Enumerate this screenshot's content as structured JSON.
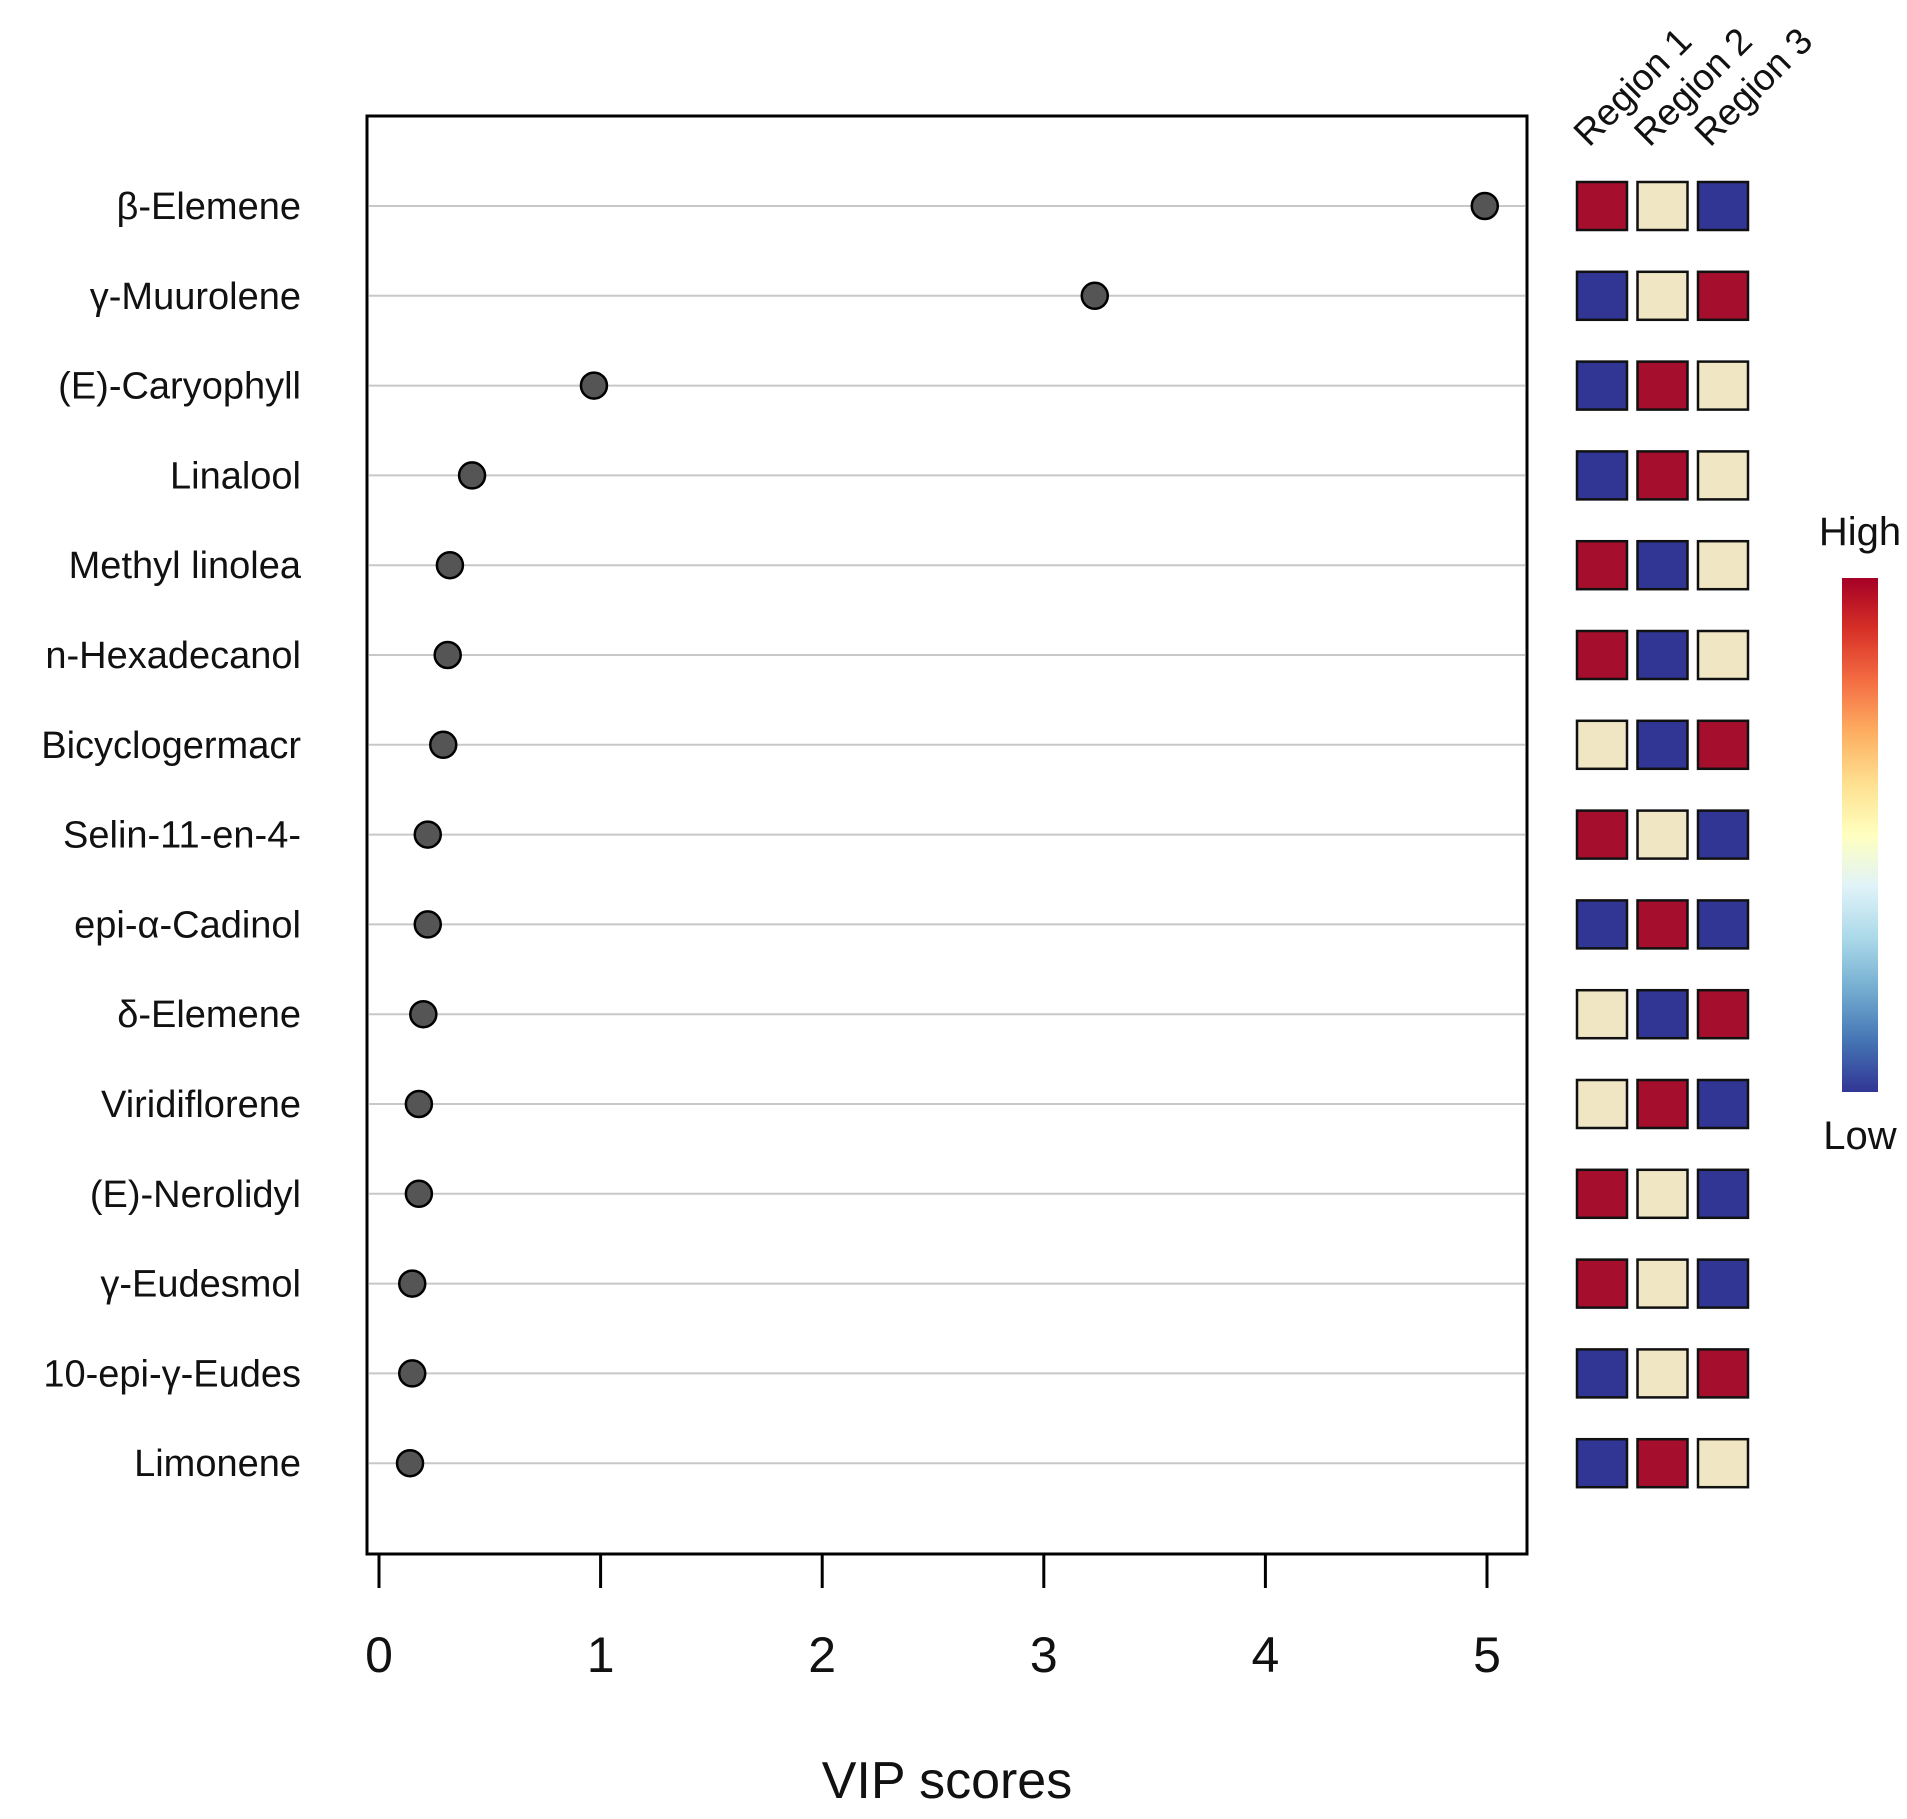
{
  "chart_data": {
    "type": "scatter",
    "title": "",
    "xlabel": "VIP scores",
    "ylabel": "",
    "xlim": [
      -0.05,
      5.18
    ],
    "x_ticks": [
      "0",
      "1",
      "2",
      "3",
      "4",
      "5"
    ],
    "x_tick_values": [
      0,
      1,
      2,
      3,
      4,
      5
    ],
    "grid": "horizontal",
    "compounds": [
      "β-Elemene",
      "γ-Muurolene",
      "(E)-Caryophyll",
      "Linalool",
      "Methyl linolea",
      "n-Hexadecanol",
      "Bicyclogermacr",
      "Selin-11-en-4-",
      "epi-α-Cadinol",
      "δ-Elemene",
      "Viridiflorene",
      "(E)-Nerolidyl ",
      "γ-Eudesmol",
      "10-epi-γ-Eudes",
      "Limonene"
    ],
    "vip_scores": [
      4.99,
      3.23,
      0.97,
      0.42,
      0.32,
      0.31,
      0.29,
      0.22,
      0.22,
      0.2,
      0.18,
      0.18,
      0.15,
      0.15,
      0.14
    ],
    "heatmap": {
      "columns": [
        "Region 1",
        "Region 2",
        "Region 3"
      ],
      "levels": [
        [
          "high",
          "mid",
          "low"
        ],
        [
          "low",
          "mid",
          "high"
        ],
        [
          "low",
          "high",
          "mid"
        ],
        [
          "low",
          "high",
          "mid"
        ],
        [
          "high",
          "low",
          "mid"
        ],
        [
          "high",
          "low",
          "mid"
        ],
        [
          "mid",
          "low",
          "high"
        ],
        [
          "high",
          "mid",
          "low"
        ],
        [
          "low",
          "high",
          "low"
        ],
        [
          "mid",
          "low",
          "high"
        ],
        [
          "mid",
          "high",
          "low"
        ],
        [
          "high",
          "mid",
          "low"
        ],
        [
          "high",
          "mid",
          "low"
        ],
        [
          "low",
          "mid",
          "high"
        ],
        [
          "low",
          "high",
          "mid"
        ]
      ],
      "colors": {
        "high": "#A50F2D",
        "mid": "#F0E6C4",
        "low": "#313695"
      }
    },
    "legend": {
      "high_label": "High",
      "low_label": "Low",
      "placement": "right",
      "gradient": [
        "#313695",
        "#4575B4",
        "#74ADD1",
        "#ABD9E9",
        "#E0F3F8",
        "#FFFFBF",
        "#FEE090",
        "#FDAE61",
        "#F46D43",
        "#D73027",
        "#A50026"
      ]
    },
    "point_color": "#555555"
  }
}
